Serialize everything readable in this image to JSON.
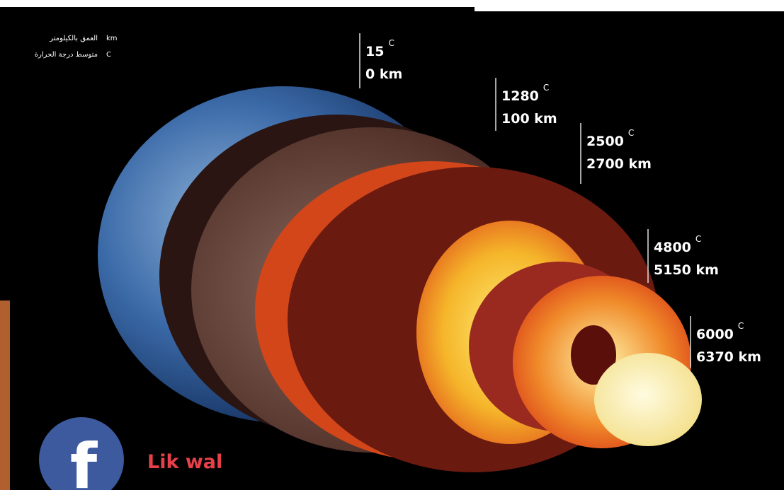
{
  "legend": [
    {
      "unit": "km",
      "text": "العمق بالكيلومتر"
    },
    {
      "unit": "C",
      "text": "متوسط درجة الحرارة"
    }
  ],
  "labels": [
    {
      "temp": "15",
      "unit": "C",
      "depth": "0 km"
    },
    {
      "temp": "1280",
      "unit": "C",
      "depth": "100 km"
    },
    {
      "temp": "2500",
      "unit": "C",
      "depth": "2700 km"
    },
    {
      "temp": "4800",
      "unit": "C",
      "depth": "5150 km"
    },
    {
      "temp": "6000",
      "unit": "C",
      "depth": "6370 km"
    }
  ],
  "logo": {
    "letter": "f"
  },
  "caption": "Lik wal"
}
